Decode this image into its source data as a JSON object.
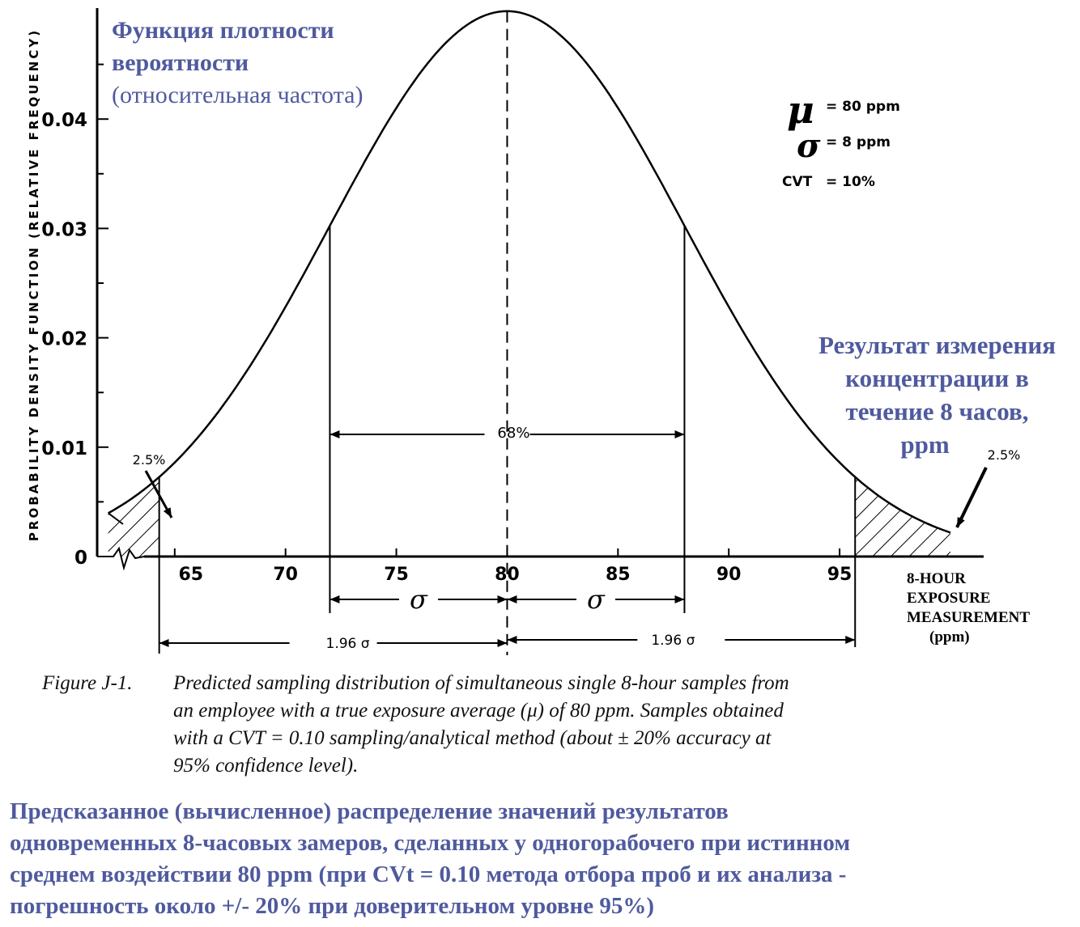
{
  "overlay_ru": {
    "ylabel_title_bold": "Функция плотности вероятности",
    "ylabel_title_line1": "Функция плотности",
    "ylabel_title_line2": "вероятности",
    "ylabel_subtitle": "(относительная частота)",
    "xlabel_lines": [
      "Результат измерения",
      "концентрации в",
      "течение 8 часов,",
      "ppm"
    ],
    "caption_lines": [
      "Предсказанное (вычисленное) распределение значений результатов",
      "одновременных 8-часовых замеров, сделанных у одногорабочего при истинном",
      "среднем воздействии 80 ppm (при CVt = 0.10 метода отбора проб и их анализа -",
      "погрешность около +/- 20% при доверительном уровне 95%)"
    ]
  },
  "caption": {
    "lead": "Figure J-1.",
    "lines": [
      "Predicted  sampling  distribution of simultaneous single 8-hour samples from",
      "an employee with a true exposure average (μ) of 80 ppm. Samples obtained",
      "with a CVT = 0.10 sampling/analytical method (about ± 20% accuracy at",
      "95% confidence level)."
    ]
  },
  "colors": {
    "accent": "#4f5a9e",
    "ink": "#000000"
  },
  "chart_data": {
    "type": "line",
    "title": "",
    "ylabel": "PROBABILITY DENSITY FUNCTION (RELATIVE FREQUENCY)",
    "xlabel_lines": [
      "8-HOUR",
      "EXPOSURE",
      "MEASUREMENT",
      "(ppm)"
    ],
    "xlim": [
      61.5,
      101.5
    ],
    "ylim": [
      0,
      0.05
    ],
    "xticks": [
      65,
      70,
      75,
      80,
      85,
      90,
      95
    ],
    "yticks": [
      0,
      0.01,
      0.02,
      0.03,
      0.04
    ],
    "ytick_labels": [
      "0",
      "0.01",
      "0.02",
      "0.03",
      "0.04"
    ],
    "grid": false,
    "legend": [
      {
        "symbol": "μ",
        "text": "= 80 ppm"
      },
      {
        "symbol": "σ",
        "text": "= 8 ppm"
      },
      {
        "symbol": "CVT",
        "text": "= 10%"
      }
    ],
    "distribution": {
      "mean": 80,
      "sd": 8
    },
    "x": [
      62,
      64,
      66,
      68,
      70,
      72,
      74,
      76,
      78,
      80,
      82,
      84,
      86,
      88,
      90,
      92,
      94,
      96,
      98,
      100
    ],
    "values": [
      0.004,
      0.0068,
      0.0108,
      0.0161,
      0.0228,
      0.0302,
      0.0377,
      0.044,
      0.0483,
      0.0499,
      0.0483,
      0.044,
      0.0377,
      0.0302,
      0.0228,
      0.0161,
      0.0108,
      0.0068,
      0.004,
      0.0023
    ],
    "shaded_regions": [
      {
        "from": 62,
        "to": 64.3,
        "label": "2.5%"
      },
      {
        "from": 95.7,
        "to": 100,
        "label": "2.5%"
      }
    ],
    "reference_lines": [
      72,
      80,
      88
    ],
    "annotations": {
      "center_band": {
        "from": 72,
        "to": 88,
        "label": "68%"
      },
      "sigma_left": {
        "from": 72,
        "to": 80,
        "label": "σ"
      },
      "sigma_right": {
        "from": 80,
        "to": 88,
        "label": "σ"
      },
      "ci_left": {
        "from": 64.3,
        "to": 80,
        "label": "1.96 σ"
      },
      "ci_right": {
        "from": 80,
        "to": 95.7,
        "label": "1.96 σ"
      }
    }
  }
}
